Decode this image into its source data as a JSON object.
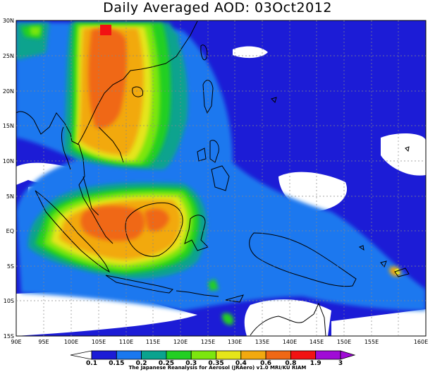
{
  "title": "Daily Averaged AOD: 03Oct2012",
  "lat_labels": [
    "30N",
    "25N",
    "20N",
    "15N",
    "10N",
    "5N",
    "EQ",
    "5S",
    "10S",
    "15S"
  ],
  "lon_labels": [
    "90E",
    "95E",
    "100E",
    "105E",
    "110E",
    "115E",
    "120E",
    "125E",
    "130E",
    "135E",
    "140E",
    "145E",
    "150E",
    "155E",
    "160E"
  ],
  "colorbar": {
    "boundaries": [
      "0.1",
      "0.15",
      "0.2",
      "0.25",
      "0.3",
      "0.35",
      "0.4",
      "0.6",
      "0.8",
      "1.9",
      "3"
    ],
    "colors": [
      "#1c1cd6",
      "#1a78ef",
      "#0aa38e",
      "#23cf23",
      "#7ce60e",
      "#e5e51a",
      "#f2a90f",
      "#f06815",
      "#f21213",
      "#a00bd6"
    ]
  },
  "footer": "The Japanese Reanalysis for Aerosol (JRAero) v1.0 MRI/KU RIAM"
}
